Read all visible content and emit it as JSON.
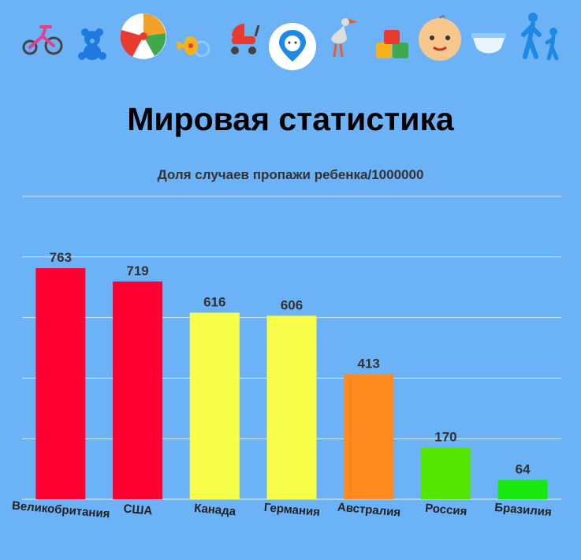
{
  "icons": [
    "tricycle-icon",
    "teddy-bear-icon",
    "beach-ball-icon",
    "pacifier-icon",
    "stroller-icon",
    "child-locator-icon",
    "stork-icon",
    "abc-blocks-icon",
    "baby-face-icon",
    "diaper-icon",
    "parent-child-walking-icon"
  ],
  "colors": {
    "background": "#6bb2f7",
    "gridline": "#d6e9fb",
    "high": "#ff0033",
    "upper": "#f8ff4a",
    "mid": "#ff8a1f",
    "low": "#55e600",
    "lowest": "#18e80e"
  },
  "chart_data": {
    "type": "bar",
    "title": "Мировая статистика",
    "subtitle": "Доля случаев пропажи ребенка/1000000",
    "categories": [
      "Великобритания",
      "США",
      "Канада",
      "Германия",
      "Австралия",
      "Россия",
      "Бразилия"
    ],
    "values": [
      763,
      719,
      616,
      606,
      413,
      170,
      64
    ],
    "bar_colors": [
      "#ff0033",
      "#ff0033",
      "#f8ff4a",
      "#f8ff4a",
      "#ff8a1f",
      "#55e600",
      "#18e80e"
    ],
    "ylim": [
      0,
      1000
    ],
    "grid": true,
    "y_tick_labels_shown": false,
    "category_label_rotation_deg": 5
  }
}
